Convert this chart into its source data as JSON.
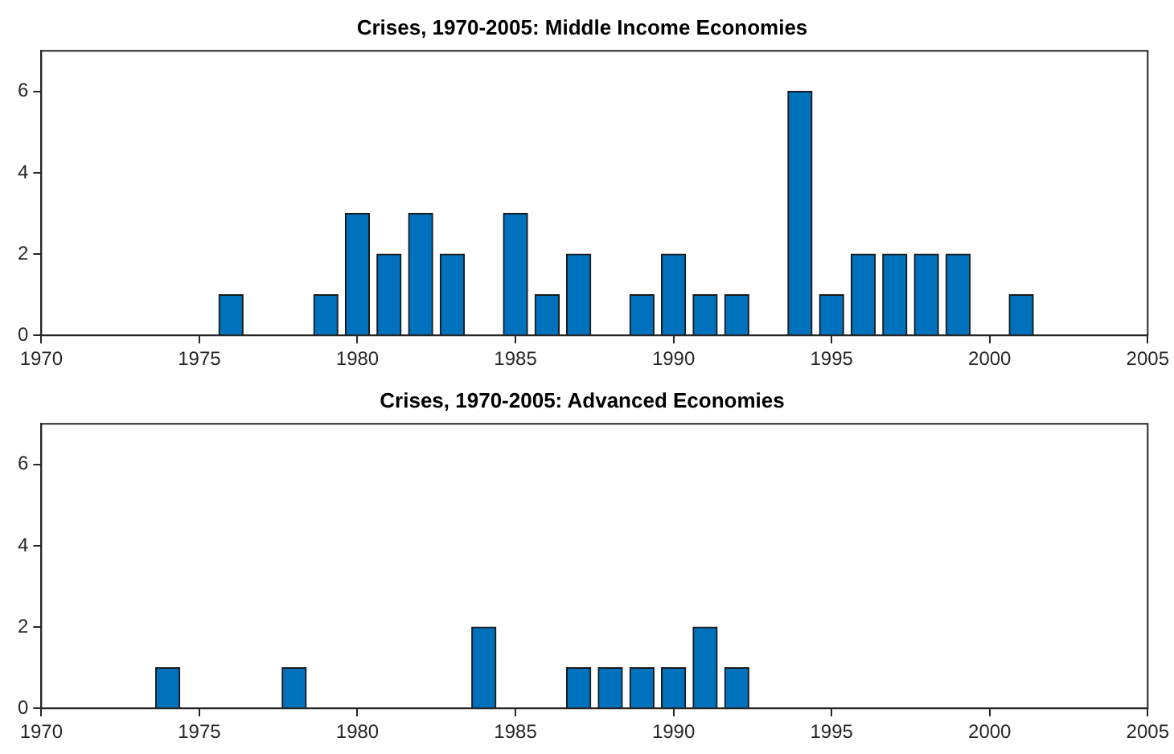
{
  "chart_data": [
    {
      "type": "bar",
      "title": "Crises, 1970-2005: Middle Income Economies",
      "x": [
        1976,
        1979,
        1980,
        1981,
        1982,
        1983,
        1985,
        1986,
        1987,
        1989,
        1990,
        1991,
        1992,
        1994,
        1995,
        1996,
        1997,
        1998,
        1999,
        2001
      ],
      "values": [
        1,
        1,
        3,
        2,
        3,
        2,
        3,
        1,
        2,
        1,
        2,
        1,
        1,
        6,
        1,
        2,
        2,
        2,
        2,
        1
      ],
      "color": "#0072bd",
      "xlim": [
        1970,
        2005
      ],
      "xticks": [
        1970,
        1975,
        1980,
        1985,
        1990,
        1995,
        2000,
        2005
      ],
      "ylim": [
        0,
        7
      ],
      "yticks": [
        0,
        2,
        4,
        6
      ],
      "grid": false,
      "legend": false
    },
    {
      "type": "bar",
      "title": "Crises, 1970-2005: Advanced Economies",
      "x": [
        1974,
        1978,
        1984,
        1987,
        1988,
        1989,
        1990,
        1991,
        1992
      ],
      "values": [
        1,
        1,
        2,
        1,
        1,
        1,
        1,
        2,
        1
      ],
      "color": "#0072bd",
      "xlim": [
        1970,
        2005
      ],
      "xticks": [
        1970,
        1975,
        1980,
        1985,
        1990,
        1995,
        2000,
        2005
      ],
      "ylim": [
        0,
        7
      ],
      "yticks": [
        0,
        2,
        4,
        6
      ],
      "grid": false,
      "legend": false
    }
  ]
}
